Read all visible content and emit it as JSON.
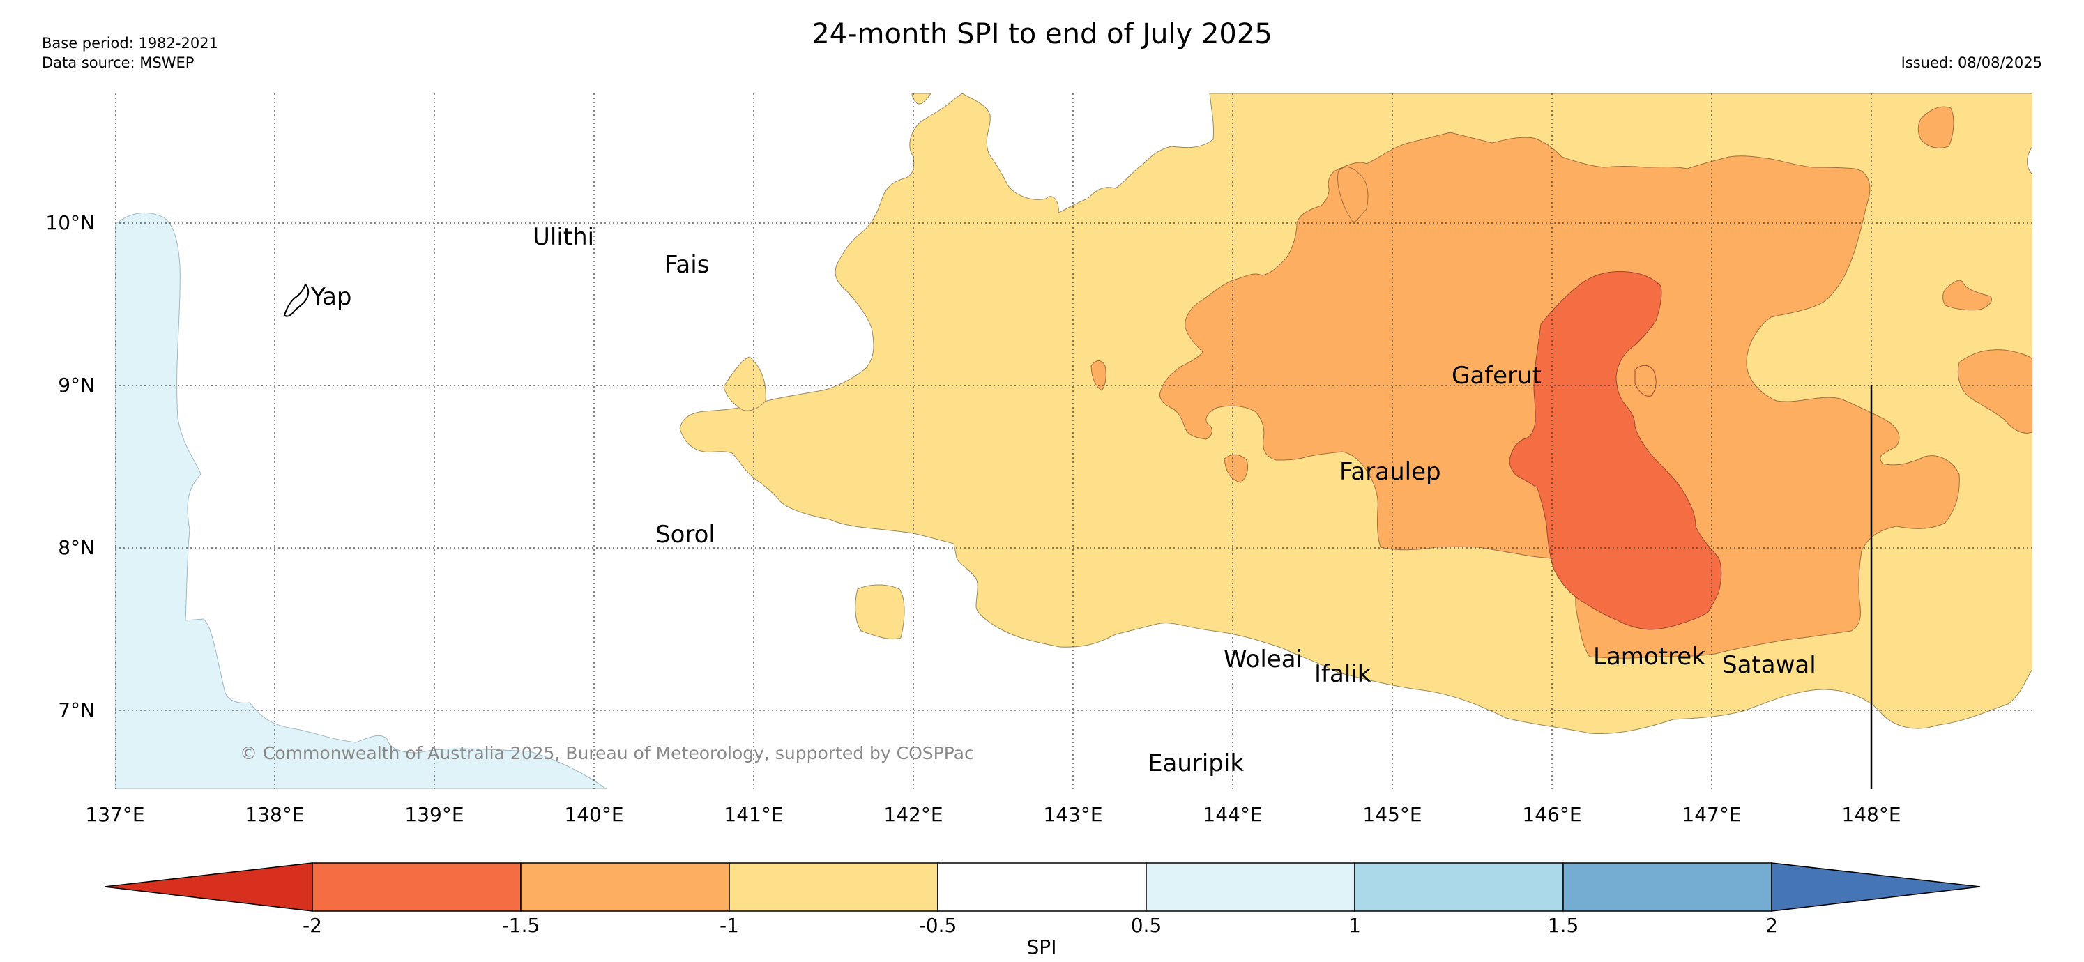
{
  "title": "24-month SPI to end of July 2025",
  "base_period": "Base period: 1982-2021",
  "data_source": "Data source: MSWEP",
  "issued": "Issued: 08/08/2025",
  "copyright": "© Commonwealth of Australia 2025, Bureau of Meteorology, supported by COSPPac",
  "lat_labels": [
    "10°N",
    "9°N",
    "8°N",
    "7°N"
  ],
  "lon_labels": [
    "137°E",
    "138°E",
    "139°E",
    "140°E",
    "141°E",
    "142°E",
    "143°E",
    "144°E",
    "145°E",
    "146°E",
    "147°E",
    "148°E"
  ],
  "places": [
    "Yap",
    "Ulithi",
    "Fais",
    "Gaferut",
    "Faraulep",
    "Sorol",
    "Woleai",
    "Ifalik",
    "Lamotrek",
    "Satawal",
    "Eauripik"
  ],
  "colorbar": {
    "label": "SPI",
    "ticks": [
      "-2",
      "-1.5",
      "-1",
      "-0.5",
      "0.5",
      "1",
      "1.5",
      "2"
    ],
    "colors": [
      "#d7301f",
      "#f46d43",
      "#fdae61",
      "#fee08b",
      "#ffffff",
      "#e0f3f8",
      "#abd9e9",
      "#74add1",
      "#4575b4"
    ]
  }
}
